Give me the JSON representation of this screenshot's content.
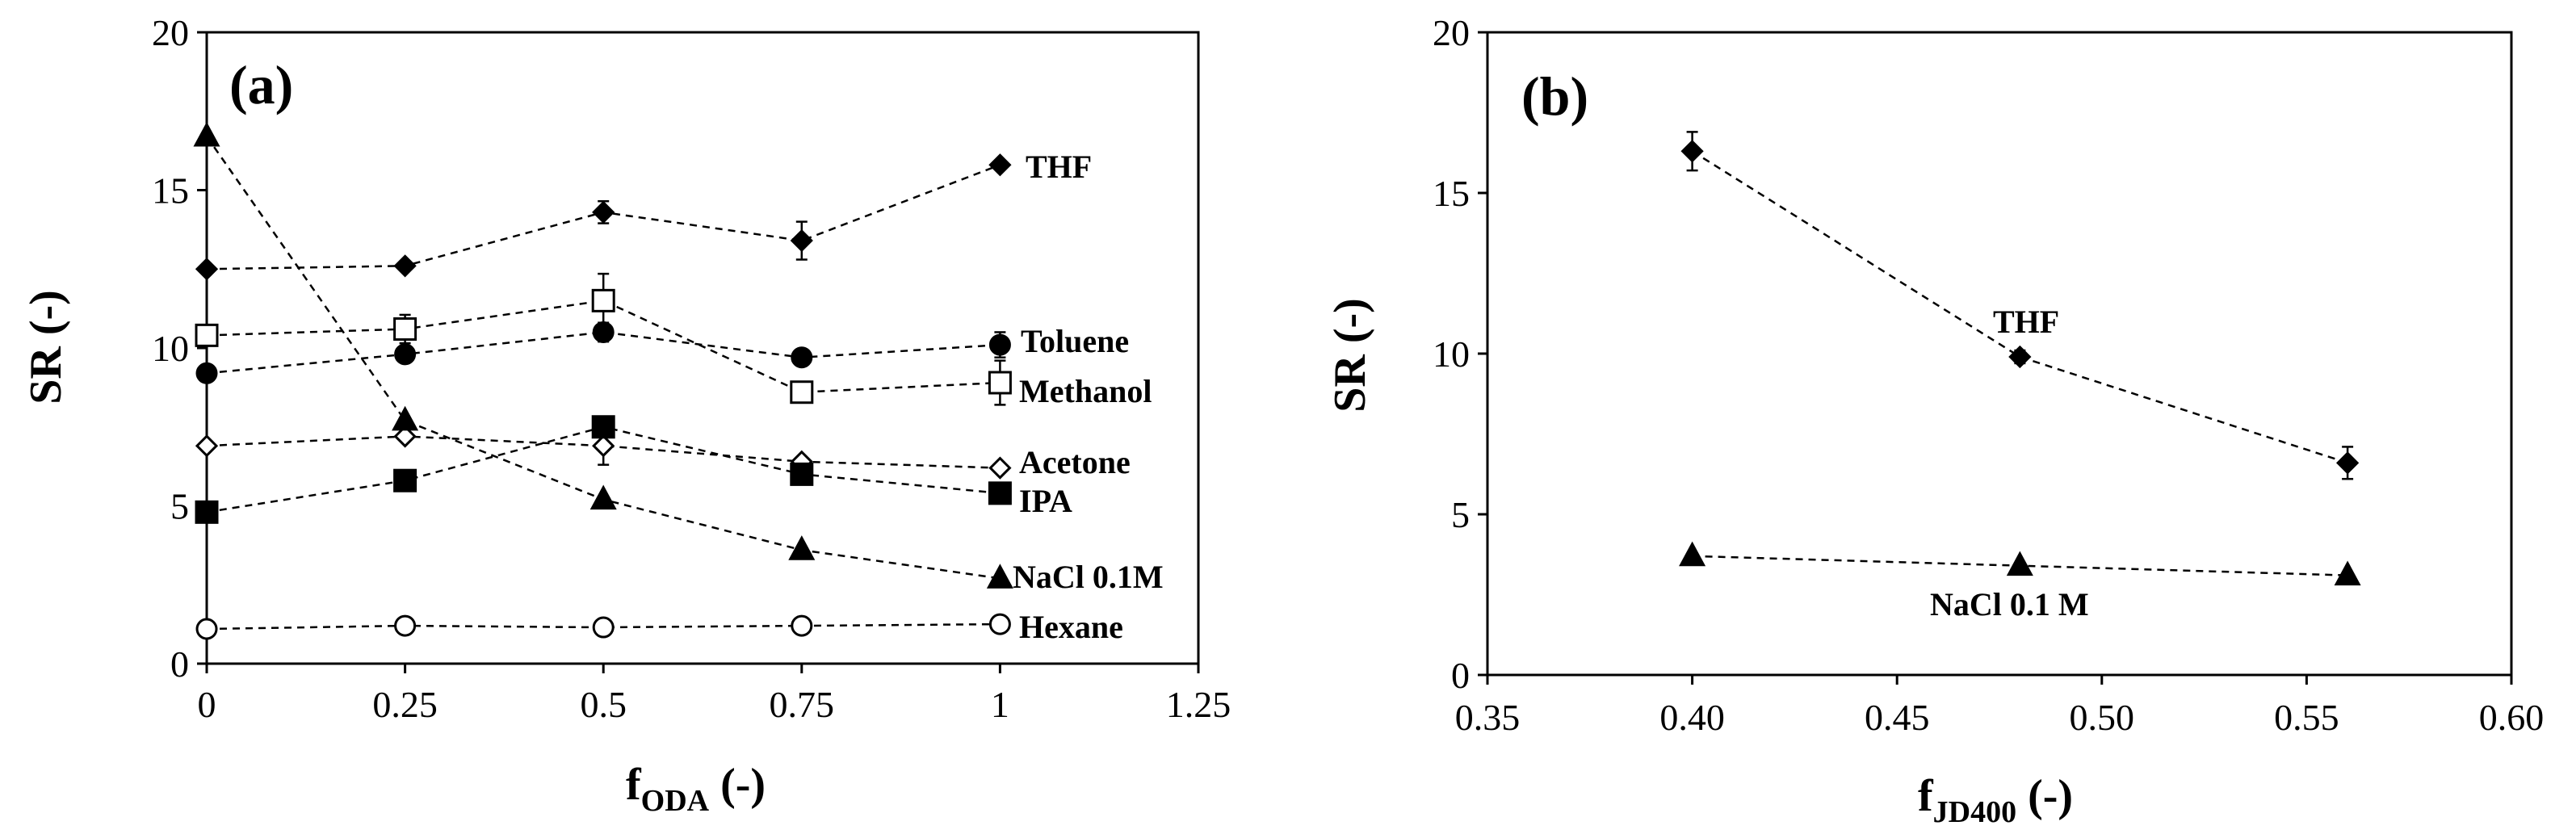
{
  "chart_data": [
    {
      "type": "line",
      "panel_label": "(a)",
      "ylabel": "SR (-)",
      "xlabel_main": "f",
      "xlabel_sub": "ODA",
      "xlabel_suffix": " (-)",
      "xlim": [
        0,
        1.25
      ],
      "ylim": [
        0,
        20
      ],
      "xticks": [
        0,
        0.25,
        0.5,
        0.75,
        1,
        1.25
      ],
      "xtick_labels": [
        "0",
        "0.25",
        "0.5",
        "0.75",
        "1",
        "1.25"
      ],
      "yticks": [
        0,
        5,
        10,
        15,
        20
      ],
      "ytick_labels": [
        "0",
        "5",
        "10",
        "15",
        "20"
      ],
      "x": [
        0,
        0.25,
        0.5,
        0.75,
        1
      ],
      "series": [
        {
          "name": "THF",
          "marker": "diamond-filled",
          "values": [
            12.5,
            12.6,
            14.3,
            13.4,
            15.8
          ],
          "err": [
            0,
            0,
            0.35,
            0.6,
            0
          ]
        },
        {
          "name": "Toluene",
          "marker": "circle-filled",
          "values": [
            9.2,
            9.8,
            10.5,
            9.7,
            10.1
          ],
          "err": [
            0,
            0,
            0.3,
            0,
            0.4
          ]
        },
        {
          "name": "Methanol",
          "marker": "square-open",
          "values": [
            10.4,
            10.6,
            11.5,
            8.6,
            8.9
          ],
          "err": [
            0,
            0.45,
            0.85,
            0,
            0.7
          ]
        },
        {
          "name": "Acetone",
          "marker": "diamond-open",
          "values": [
            6.9,
            7.2,
            6.9,
            6.4,
            6.2
          ],
          "err": [
            0,
            0,
            0.6,
            0,
            0
          ]
        },
        {
          "name": "IPA",
          "marker": "square-filled",
          "values": [
            4.8,
            5.8,
            7.5,
            6.0,
            5.4
          ],
          "err": [
            0,
            0,
            0,
            0,
            0
          ]
        },
        {
          "name": "NaCl 0.1M",
          "marker": "triangle-filled",
          "values": [
            16.7,
            7.7,
            5.2,
            3.6,
            2.7
          ],
          "err": [
            0,
            0,
            0,
            0,
            0
          ]
        },
        {
          "name": "Hexane",
          "marker": "circle-open",
          "values": [
            1.1,
            1.2,
            1.15,
            1.2,
            1.25
          ],
          "err": [
            0,
            0,
            0,
            0,
            0
          ]
        }
      ]
    },
    {
      "type": "line",
      "panel_label": "(b)",
      "ylabel": "SR (-)",
      "xlabel_main": "f",
      "xlabel_sub": "JD400",
      "xlabel_suffix": " (-)",
      "xlim": [
        0.35,
        0.6
      ],
      "ylim": [
        0,
        20
      ],
      "xticks": [
        0.35,
        0.4,
        0.45,
        0.5,
        0.55,
        0.6
      ],
      "xtick_labels": [
        "0.35",
        "0.40",
        "0.45",
        "0.50",
        "0.55",
        "0.60"
      ],
      "yticks": [
        0,
        5,
        10,
        15,
        20
      ],
      "ytick_labels": [
        "0",
        "5",
        "10",
        "15",
        "20"
      ],
      "x": [
        0.4,
        0.48,
        0.56
      ],
      "series": [
        {
          "name": "THF",
          "marker": "diamond-filled",
          "values": [
            16.3,
            9.9,
            6.6
          ],
          "err": [
            0.6,
            0.2,
            0.5
          ]
        },
        {
          "name": "NaCl 0.1 M",
          "marker": "triangle-filled",
          "values": [
            3.7,
            3.4,
            3.1
          ],
          "err": [
            0,
            0,
            0
          ]
        }
      ]
    }
  ]
}
